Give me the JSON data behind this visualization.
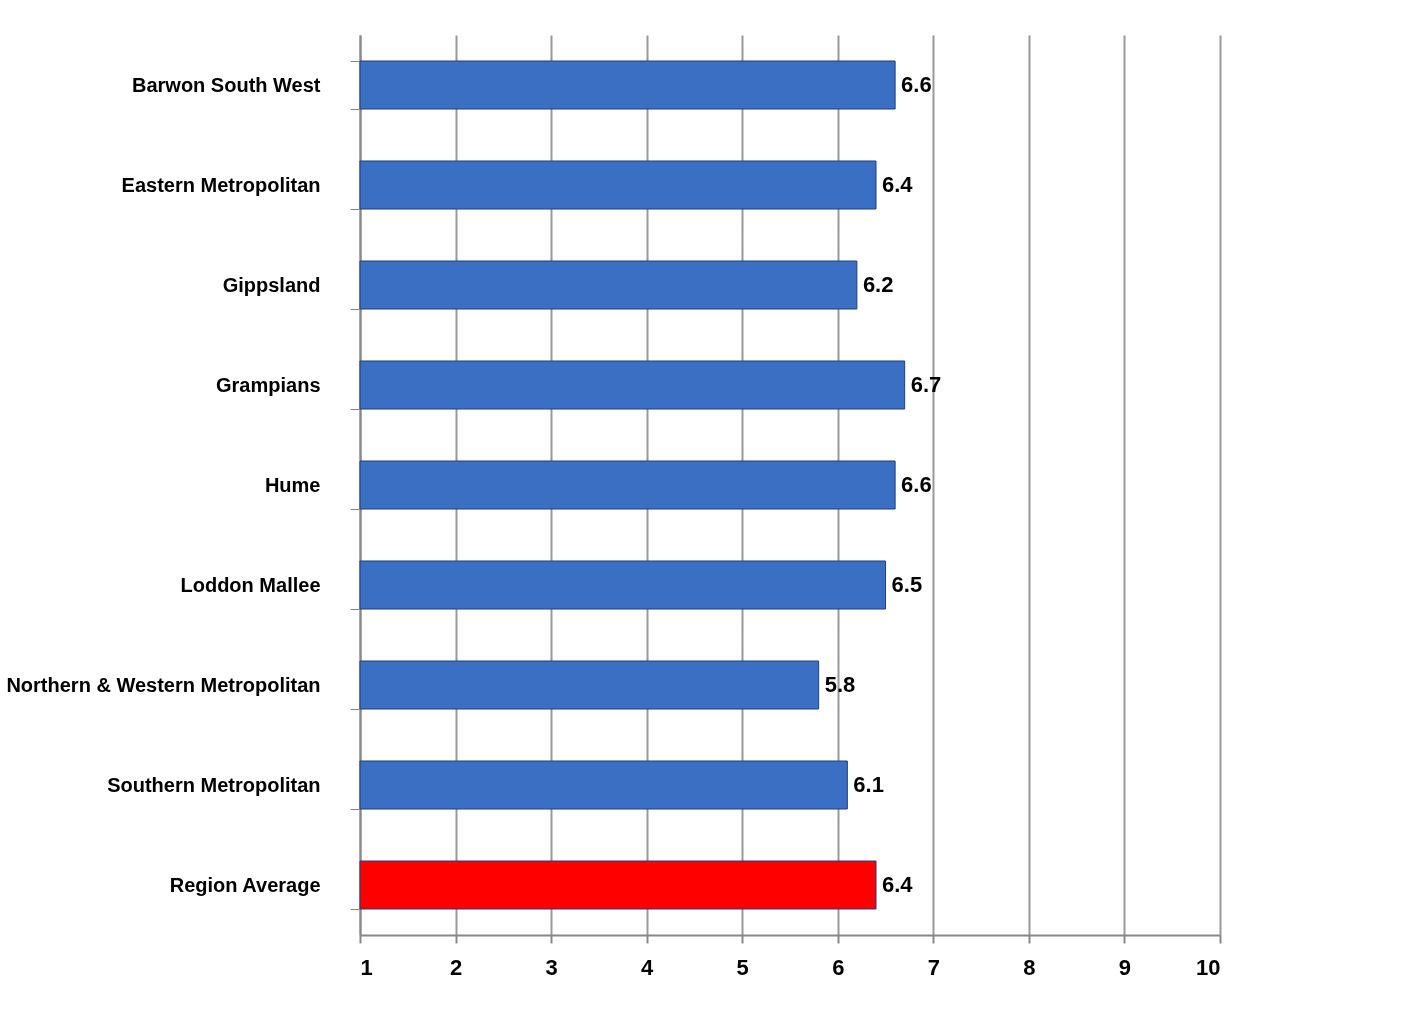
{
  "chart_data": {
    "type": "bar",
    "orientation": "horizontal",
    "categories": [
      "Barwon South West",
      "Eastern Metropolitan",
      "Gippsland",
      "Grampians",
      "Hume",
      "Loddon Mallee",
      "Northern & Western Metropolitan",
      "Southern Metropolitan",
      "Region Average"
    ],
    "values": [
      6.6,
      6.4,
      6.2,
      6.7,
      6.6,
      6.5,
      5.8,
      6.1,
      6.4
    ],
    "colors": [
      "#3a6fc4",
      "#3a6fc4",
      "#3a6fc4",
      "#3a6fc4",
      "#3a6fc4",
      "#3a6fc4",
      "#3a6fc4",
      "#3a6fc4",
      "#ff0000"
    ],
    "xlim": [
      1,
      10
    ],
    "xticks": [
      1,
      2,
      3,
      4,
      5,
      6,
      7,
      8,
      9,
      10
    ],
    "grid": "x",
    "data_labels": true
  }
}
